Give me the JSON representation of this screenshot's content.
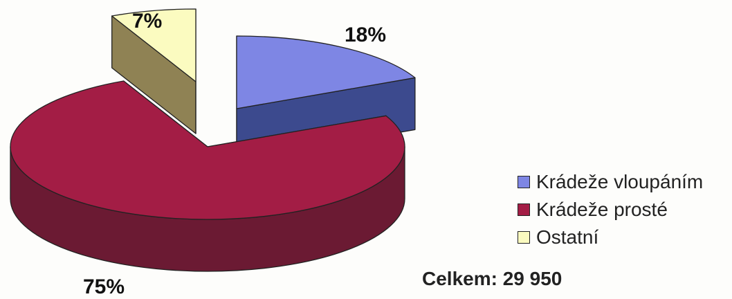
{
  "chart_data": {
    "type": "pie",
    "categories": [
      "Krádeže vloupáním",
      "Krádeže prosté",
      "Ostatní"
    ],
    "values": [
      18,
      75,
      7
    ],
    "labels": [
      "18%",
      "75%",
      "7%"
    ],
    "colors": [
      "#7e86e4",
      "#a31d45",
      "#fbfbc0"
    ],
    "side_colors": [
      "#3c4a8e",
      "#6b1a33",
      "#8f8254"
    ],
    "exploded_slices": [
      0,
      2
    ],
    "legend_position": "right"
  },
  "total_text": "Celkem: 29 950"
}
